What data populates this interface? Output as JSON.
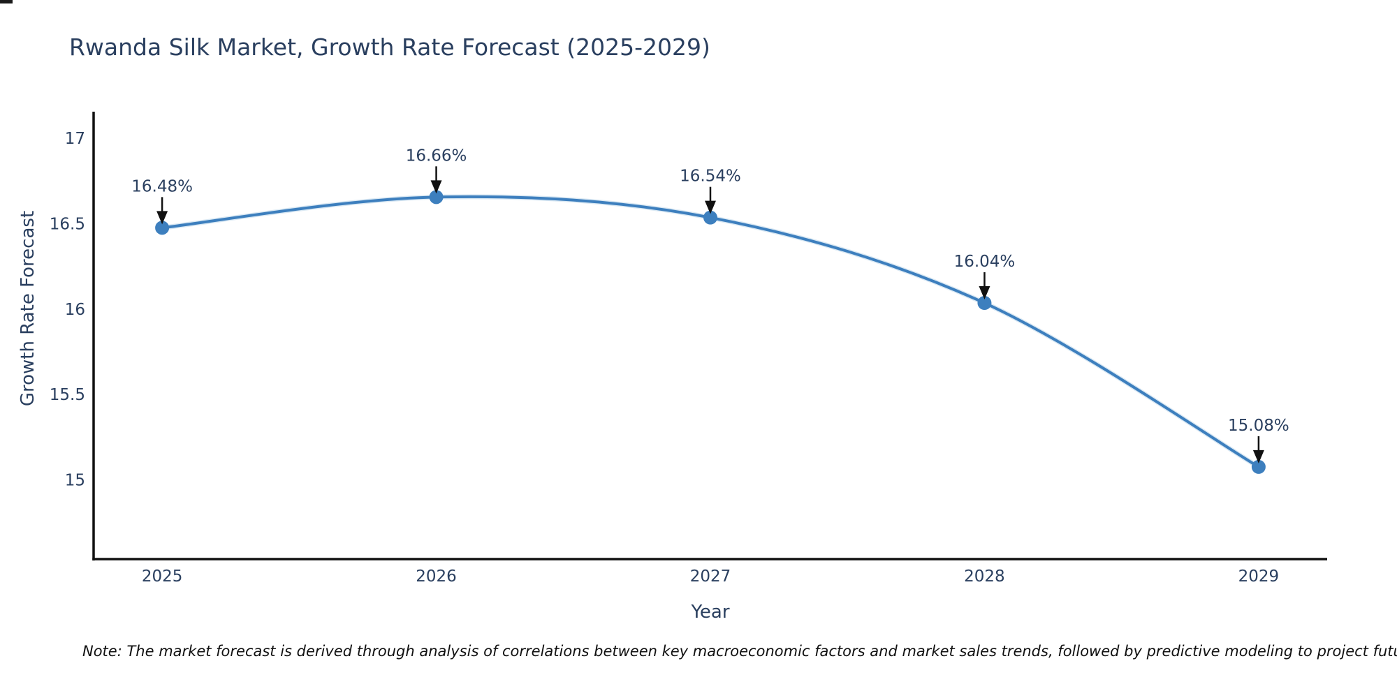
{
  "figure": {
    "note": "Note: The market forecast is derived through analysis of correlations between key macroeconomic factors and market sales trends, followed by predictive modeling to project future sal"
  },
  "colors": {
    "line": "#3d7fbe",
    "line_halo": "#b9d5ea",
    "marker": "#3d7fbe",
    "text": "#2a3f5f",
    "axis": "#111111",
    "arrow": "#111111",
    "background": "#ffffff"
  },
  "chart_data": {
    "type": "line",
    "title": "Rwanda Silk Market, Growth Rate Forecast (2025-2029)",
    "xlabel": "Year",
    "ylabel": "Growth Rate Forecast",
    "x": [
      2025,
      2026,
      2027,
      2028,
      2029
    ],
    "values": [
      16.48,
      16.66,
      16.54,
      16.04,
      15.08
    ],
    "point_labels": [
      "16.48%",
      "16.66%",
      "16.54%",
      "16.04%",
      "15.08%"
    ],
    "xtick_labels": [
      "2025",
      "2026",
      "2027",
      "2028",
      "2029"
    ],
    "ytick_values": [
      15,
      15.5,
      16,
      16.5,
      17
    ],
    "ytick_labels": [
      "15",
      "15.5",
      "16",
      "16.5",
      "17"
    ],
    "xlim": [
      2024.75,
      2029.25
    ],
    "ylim": [
      14.54,
      17.16
    ],
    "line_shape": "spline",
    "grid": false,
    "legend": "none",
    "annotation_style": "value label with downward black arrow above each data point"
  }
}
